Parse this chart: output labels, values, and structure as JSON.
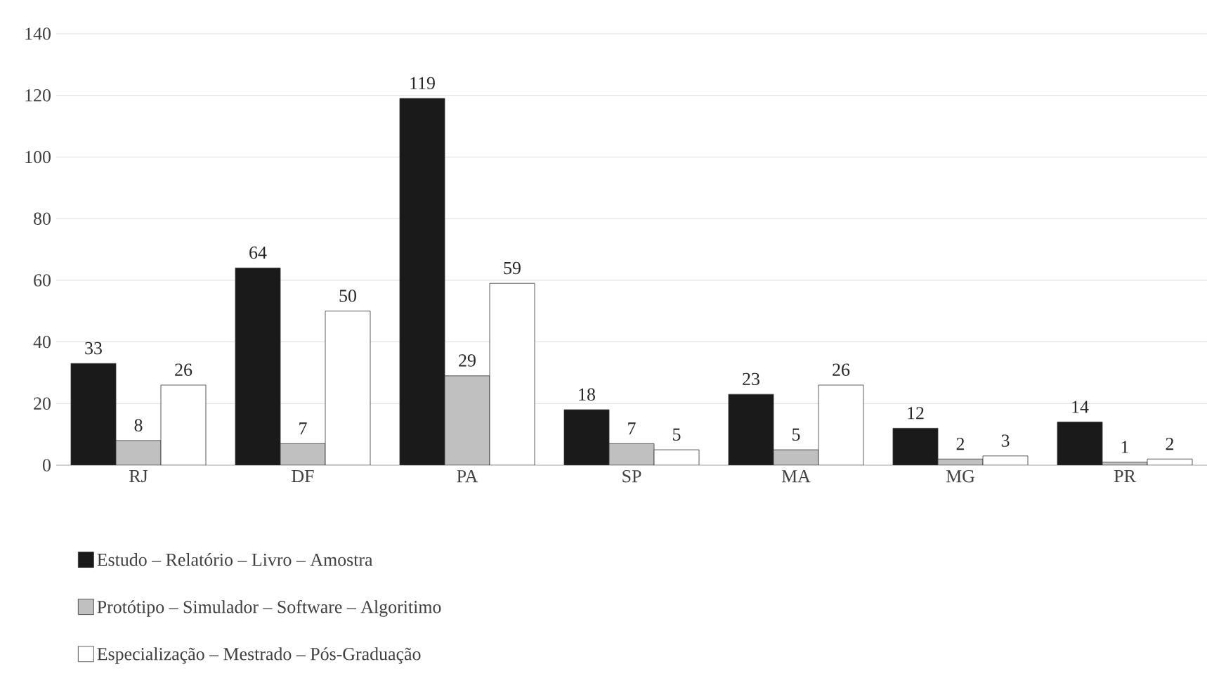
{
  "chart_data": {
    "type": "bar",
    "categories": [
      "RJ",
      "DF",
      "PA",
      "SP",
      "MA",
      "MG",
      "PR"
    ],
    "series": [
      {
        "name": "Estudo – Relatório – Livro – Amostra",
        "color": "#1a1a1a",
        "values": [
          33,
          64,
          119,
          18,
          23,
          12,
          14
        ]
      },
      {
        "name": "Protótipo – Simulador – Software – Algoritimo",
        "color": "#c0c0c0",
        "values": [
          8,
          7,
          29,
          7,
          5,
          2,
          1
        ]
      },
      {
        "name": "Especialização – Mestrado – Pós-Graduação",
        "color": "#ffffff",
        "values": [
          26,
          50,
          59,
          5,
          26,
          3,
          2
        ]
      }
    ],
    "ylim": [
      0,
      140
    ],
    "yticks": [
      0,
      20,
      40,
      60,
      80,
      100,
      120,
      140
    ],
    "grid": "y",
    "legend": "bottom left",
    "data_labels": true
  }
}
